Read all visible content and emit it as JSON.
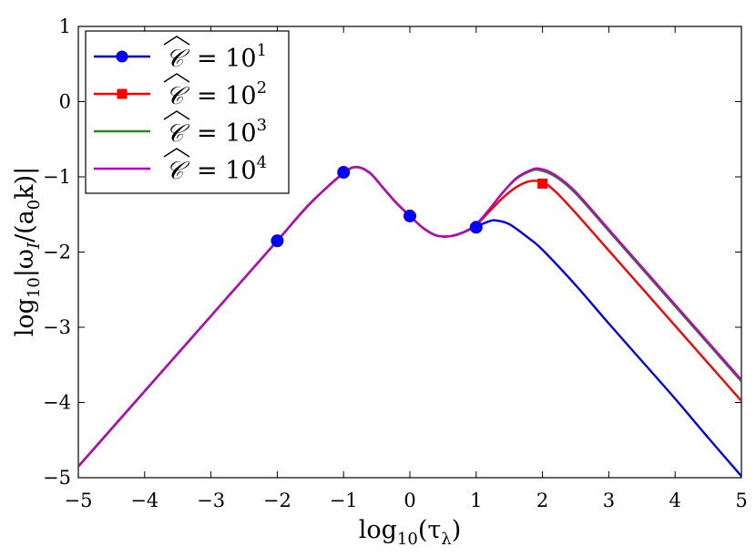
{
  "chart_data": {
    "type": "line",
    "title": "",
    "xlabel": "log₁₀(τλ)",
    "ylabel": "log₁₀|ωI/(a₀k)|",
    "xlim": [
      -5,
      5
    ],
    "ylim": [
      -5,
      1
    ],
    "xticks": [
      -5,
      -4,
      -3,
      -2,
      -1,
      0,
      1,
      2,
      3,
      4,
      5
    ],
    "yticks": [
      -5,
      -4,
      -3,
      -2,
      -1,
      0,
      1
    ],
    "xtick_labels": [
      "−5",
      "−4",
      "−3",
      "−2",
      "−1",
      "0",
      "1",
      "2",
      "3",
      "4",
      "5"
    ],
    "ytick_labels": [
      "−5",
      "−4",
      "−3",
      "−2",
      "−1",
      "0",
      "1"
    ],
    "legend_position": "top-left",
    "series": [
      {
        "name": "C = 10^1",
        "legend_label": "= 10",
        "legend_exp": "1",
        "color": "#0000ff",
        "marker": "circle",
        "x": [
          -5,
          -4,
          -3,
          -2,
          -1.5,
          -1,
          -0.8,
          -0.6,
          -0.4,
          -0.2,
          0,
          0.2,
          0.4,
          0.6,
          0.8,
          1,
          1.2,
          1.3,
          1.5,
          1.8,
          2,
          2.5,
          3,
          3.5,
          4,
          4.5,
          5
        ],
        "y": [
          -4.85,
          -3.85,
          -2.85,
          -1.85,
          -1.35,
          -0.95,
          -0.87,
          -0.95,
          -1.15,
          -1.35,
          -1.52,
          -1.68,
          -1.78,
          -1.79,
          -1.74,
          -1.66,
          -1.59,
          -1.58,
          -1.63,
          -1.82,
          -1.97,
          -2.44,
          -2.95,
          -3.45,
          -3.95,
          -4.47,
          -4.98
        ],
        "marker_points": [
          [
            -2,
            -1.85
          ],
          [
            -1,
            -0.94
          ],
          [
            0,
            -1.52
          ],
          [
            1,
            -1.67
          ]
        ]
      },
      {
        "name": "C = 10^2",
        "legend_label": "= 10",
        "legend_exp": "2",
        "color": "#ff0000",
        "marker": "square",
        "x": [
          -5,
          -4,
          -3,
          -2,
          -1.5,
          -1,
          -0.8,
          -0.6,
          -0.4,
          -0.2,
          0,
          0.2,
          0.4,
          0.6,
          0.8,
          1,
          1.2,
          1.4,
          1.6,
          1.8,
          2,
          2.2,
          2.5,
          3,
          3.5,
          4,
          4.5,
          5
        ],
        "y": [
          -4.85,
          -3.85,
          -2.85,
          -1.85,
          -1.35,
          -0.95,
          -0.87,
          -0.95,
          -1.15,
          -1.35,
          -1.52,
          -1.68,
          -1.78,
          -1.79,
          -1.74,
          -1.64,
          -1.46,
          -1.28,
          -1.14,
          -1.06,
          -1.07,
          -1.2,
          -1.48,
          -1.98,
          -2.48,
          -2.98,
          -3.48,
          -3.98
        ],
        "marker_points": [
          [
            2,
            -1.09
          ]
        ]
      },
      {
        "name": "C = 10^3",
        "legend_label": "= 10",
        "legend_exp": "3",
        "color": "#228b22",
        "marker": "none",
        "x": [
          -5,
          -4,
          -3,
          -2,
          -1.5,
          -1,
          -0.8,
          -0.6,
          -0.4,
          -0.2,
          0,
          0.2,
          0.4,
          0.6,
          0.8,
          1,
          1.2,
          1.4,
          1.6,
          1.8,
          1.95,
          2.2,
          2.5,
          3,
          3.5,
          4,
          4.5,
          5
        ],
        "y": [
          -4.85,
          -3.85,
          -2.85,
          -1.85,
          -1.35,
          -0.95,
          -0.87,
          -0.95,
          -1.15,
          -1.35,
          -1.52,
          -1.68,
          -1.78,
          -1.79,
          -1.74,
          -1.63,
          -1.43,
          -1.21,
          -1.03,
          -0.93,
          -0.91,
          -1.0,
          -1.22,
          -1.72,
          -2.22,
          -2.72,
          -3.22,
          -3.72
        ],
        "marker_points": []
      },
      {
        "name": "C = 10^4",
        "legend_label": "= 10",
        "legend_exp": "4",
        "color": "#bf00bf",
        "marker": "none",
        "x": [
          -5,
          -4,
          -3,
          -2,
          -1.5,
          -1,
          -0.8,
          -0.6,
          -0.4,
          -0.2,
          0,
          0.2,
          0.4,
          0.6,
          0.8,
          1,
          1.2,
          1.4,
          1.6,
          1.8,
          1.95,
          2.2,
          2.5,
          3,
          3.5,
          4,
          4.5,
          5
        ],
        "y": [
          -4.85,
          -3.85,
          -2.85,
          -1.85,
          -1.35,
          -0.95,
          -0.87,
          -0.95,
          -1.15,
          -1.35,
          -1.52,
          -1.68,
          -1.78,
          -1.79,
          -1.74,
          -1.63,
          -1.43,
          -1.21,
          -1.02,
          -0.92,
          -0.89,
          -0.98,
          -1.2,
          -1.7,
          -2.2,
          -2.7,
          -3.2,
          -3.7
        ],
        "marker_points": []
      }
    ]
  }
}
